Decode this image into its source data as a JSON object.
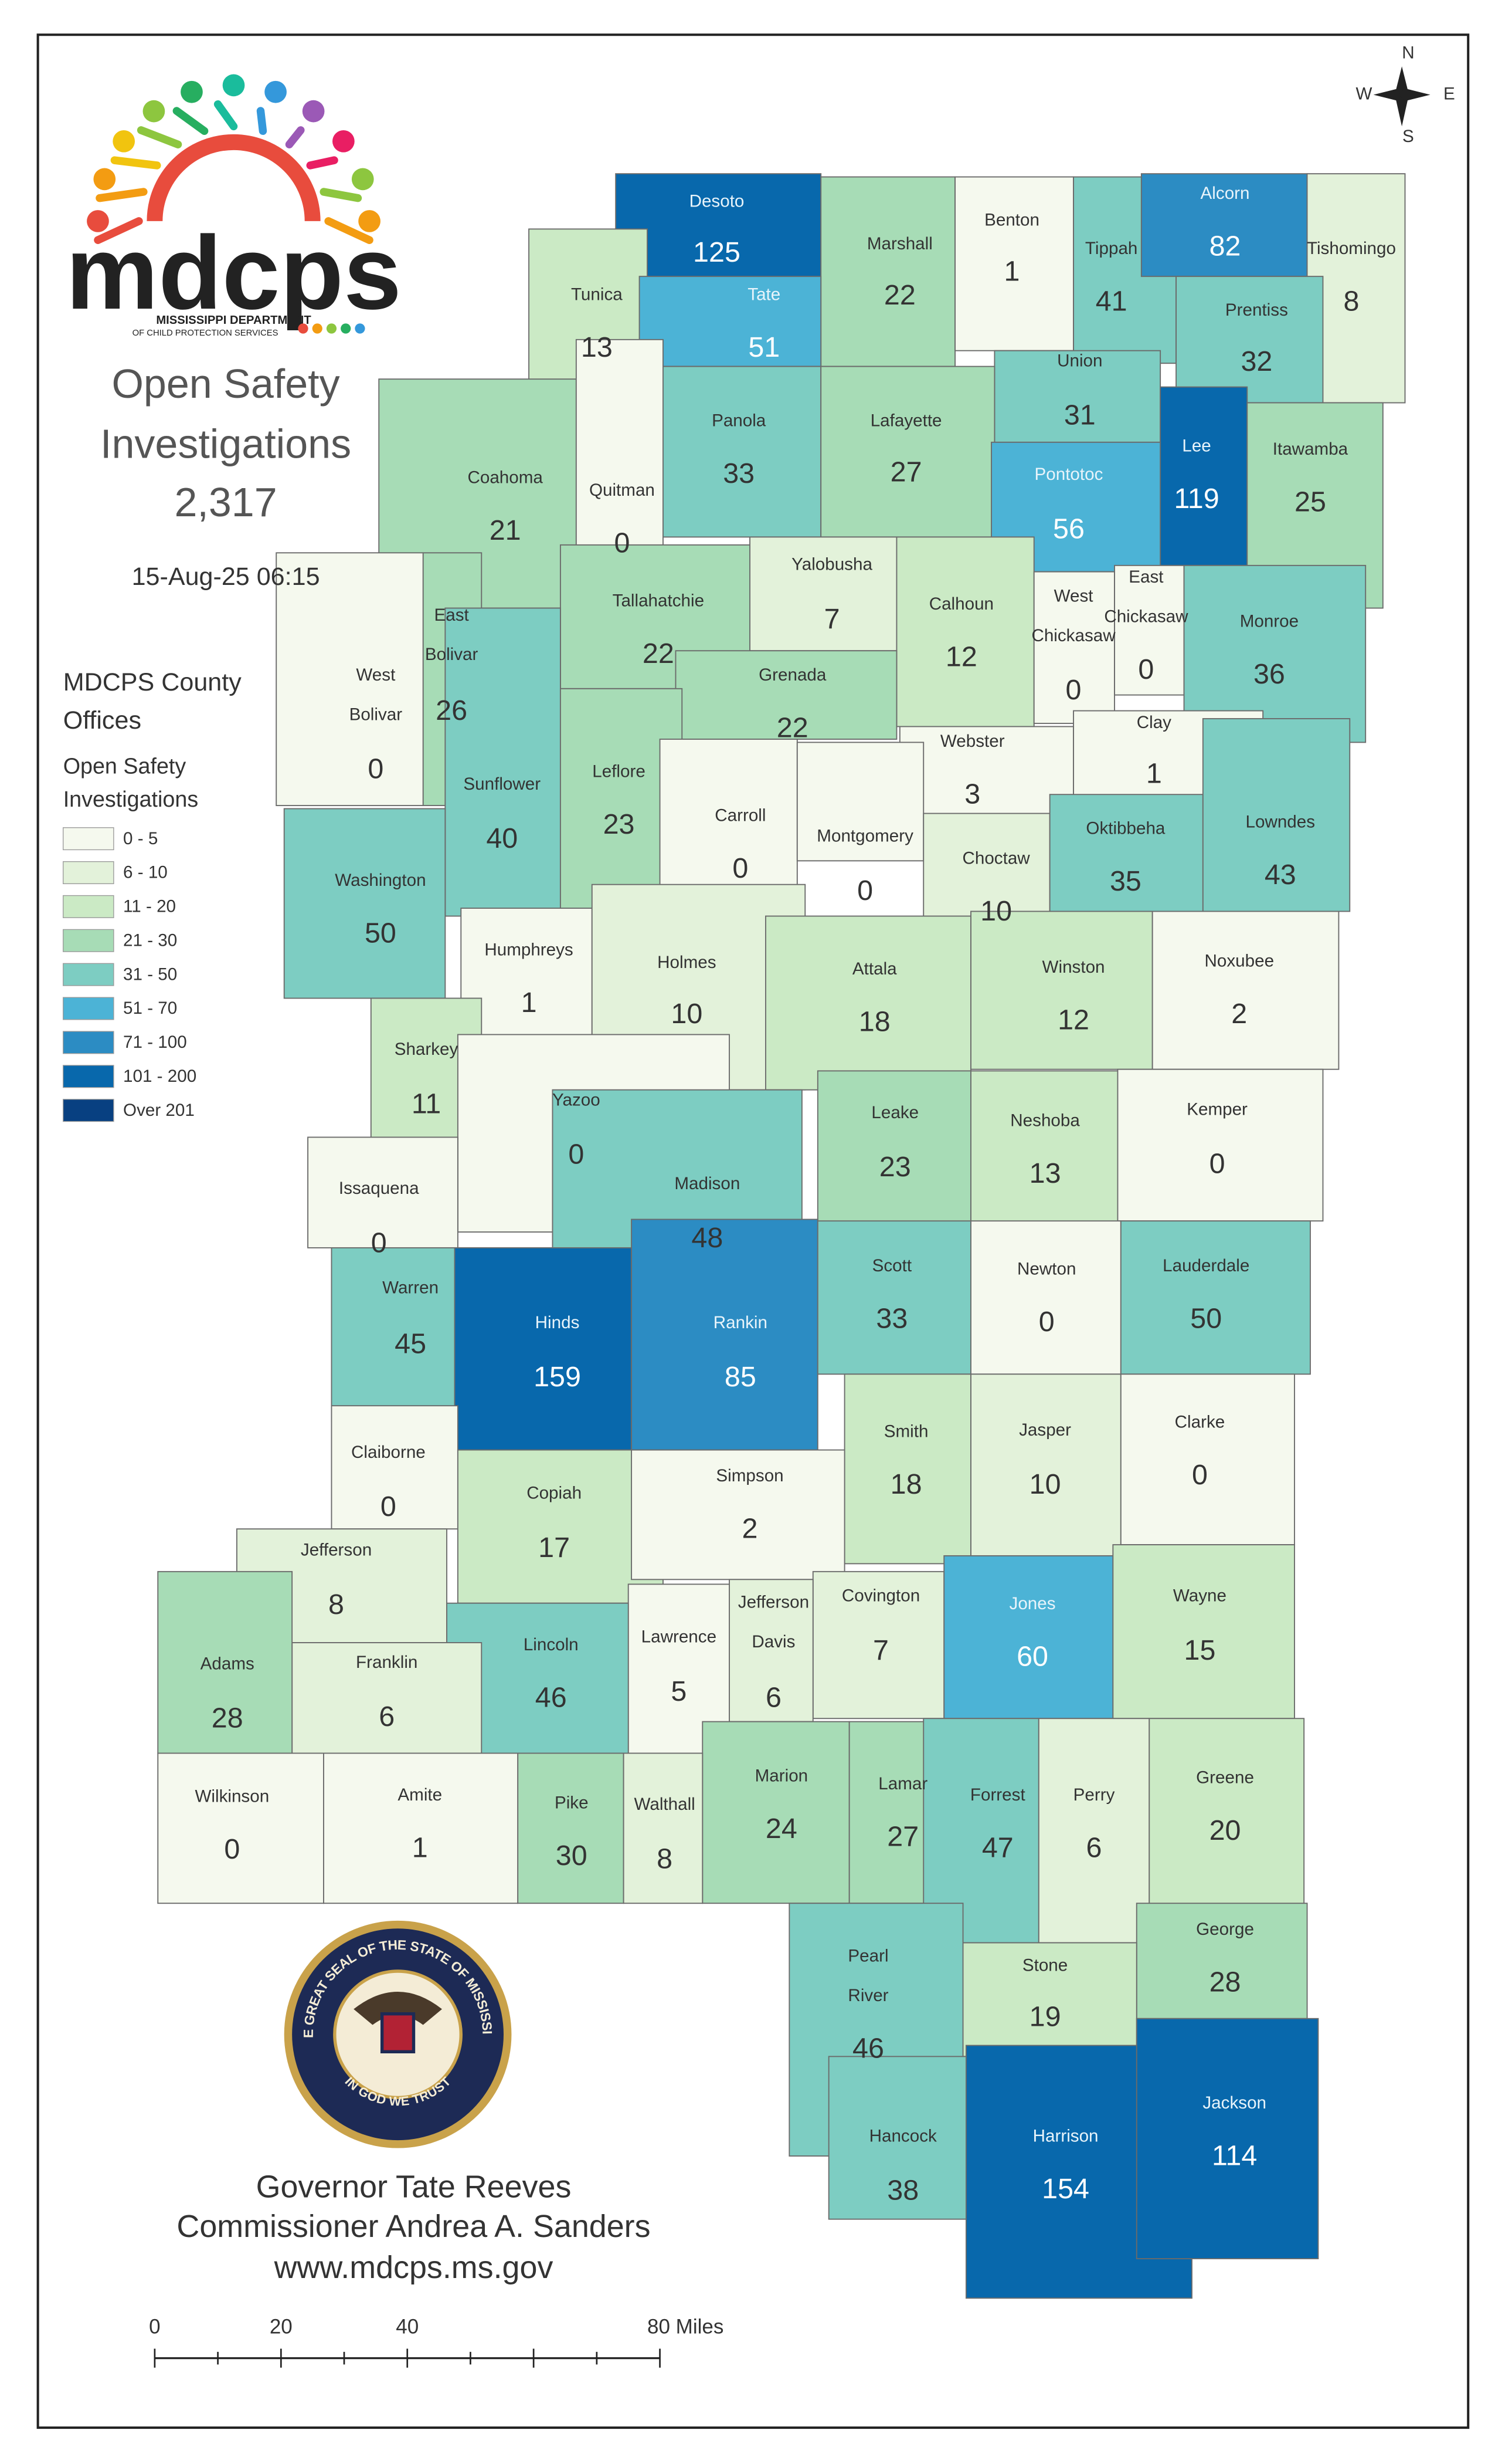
{
  "logo": {
    "name": "mdcps",
    "lines": [
      "MISSISSIPPI DEPARTMENT",
      "OF CHILD PROTECTION SERVICES"
    ]
  },
  "compass": {
    "north": "N",
    "east": "E",
    "south": "S",
    "west": "W"
  },
  "header": {
    "title": [
      "Open Safety",
      "Investigations"
    ],
    "total": "2,317",
    "timestamp": "15-Aug-25 06:15"
  },
  "legend": {
    "title": [
      "MDCPS County",
      "Offices"
    ],
    "subtitle": [
      "Open Safety",
      "Investigations"
    ],
    "bins": [
      {
        "label": "0 - 5",
        "min": 0,
        "max": 5,
        "color": "#f5f9ee"
      },
      {
        "label": "6 - 10",
        "min": 6,
        "max": 10,
        "color": "#e3f2da"
      },
      {
        "label": "11 - 20",
        "min": 11,
        "max": 20,
        "color": "#cbeac5"
      },
      {
        "label": "21 - 30",
        "min": 21,
        "max": 30,
        "color": "#a7dcb6"
      },
      {
        "label": "31 - 50",
        "min": 31,
        "max": 50,
        "color": "#7dcdc2"
      },
      {
        "label": "51 - 70",
        "min": 51,
        "max": 70,
        "color": "#4cb3d6"
      },
      {
        "label": "71 - 100",
        "min": 71,
        "max": 100,
        "color": "#2c8cc3"
      },
      {
        "label": "101 - 200",
        "min": 101,
        "max": 200,
        "color": "#0868ac"
      },
      {
        "label": "Over 201",
        "min": 201,
        "color": "#084081"
      }
    ]
  },
  "counties": [
    {
      "name": [
        "Desoto"
      ],
      "value": 125
    },
    {
      "name": [
        "Marshall"
      ],
      "value": 22
    },
    {
      "name": [
        "Benton"
      ],
      "value": 1
    },
    {
      "name": [
        "Tippah"
      ],
      "value": 41
    },
    {
      "name": [
        "Alcorn"
      ],
      "value": 82
    },
    {
      "name": [
        "Tishomingo"
      ],
      "value": 8
    },
    {
      "name": [
        "Tunica"
      ],
      "value": 13
    },
    {
      "name": [
        "Tate"
      ],
      "value": 51
    },
    {
      "name": [
        "Prentiss"
      ],
      "value": 32
    },
    {
      "name": [
        "Union"
      ],
      "value": 31
    },
    {
      "name": [
        "Panola"
      ],
      "value": 33
    },
    {
      "name": [
        "Lafayette"
      ],
      "value": 27
    },
    {
      "name": [
        "Lee"
      ],
      "value": 119
    },
    {
      "name": [
        "Itawamba"
      ],
      "value": 25
    },
    {
      "name": [
        "Coahoma"
      ],
      "value": 21
    },
    {
      "name": [
        "Quitman"
      ],
      "value": 0
    },
    {
      "name": [
        "Pontotoc"
      ],
      "value": 56
    },
    {
      "name": [
        "Yalobusha"
      ],
      "value": 7
    },
    {
      "name": [
        "Calhoun"
      ],
      "value": 12
    },
    {
      "name": [
        "West",
        "Chickasaw"
      ],
      "value": 0
    },
    {
      "name": [
        "East",
        "Chickasaw"
      ],
      "value": 0
    },
    {
      "name": [
        "Monroe"
      ],
      "value": 36
    },
    {
      "name": [
        "East",
        "Bolivar"
      ],
      "value": 26
    },
    {
      "name": [
        "Tallahatchie"
      ],
      "value": 22
    },
    {
      "name": [
        "Grenada"
      ],
      "value": 22
    },
    {
      "name": [
        "West",
        "Bolivar"
      ],
      "value": 0
    },
    {
      "name": [
        "Webster"
      ],
      "value": 3
    },
    {
      "name": [
        "Clay"
      ],
      "value": 1
    },
    {
      "name": [
        "Sunflower"
      ],
      "value": 40
    },
    {
      "name": [
        "Leflore"
      ],
      "value": 23
    },
    {
      "name": [
        "Carroll"
      ],
      "value": 0
    },
    {
      "name": [
        "Montgomery"
      ],
      "value": 0
    },
    {
      "name": [
        "Choctaw"
      ],
      "value": 10
    },
    {
      "name": [
        "Oktibbeha"
      ],
      "value": 35
    },
    {
      "name": [
        "Lowndes"
      ],
      "value": 43
    },
    {
      "name": [
        "Washington"
      ],
      "value": 50
    },
    {
      "name": [
        "Humphreys"
      ],
      "value": 1
    },
    {
      "name": [
        "Holmes"
      ],
      "value": 10
    },
    {
      "name": [
        "Attala"
      ],
      "value": 18
    },
    {
      "name": [
        "Winston"
      ],
      "value": 12
    },
    {
      "name": [
        "Noxubee"
      ],
      "value": 2
    },
    {
      "name": [
        "Sharkey"
      ],
      "value": 11
    },
    {
      "name": [
        "Yazoo"
      ],
      "value": 0
    },
    {
      "name": [
        "Leake"
      ],
      "value": 23
    },
    {
      "name": [
        "Neshoba"
      ],
      "value": 13
    },
    {
      "name": [
        "Kemper"
      ],
      "value": 0
    },
    {
      "name": [
        "Issaquena"
      ],
      "value": 0
    },
    {
      "name": [
        "Madison"
      ],
      "value": 48
    },
    {
      "name": [
        "Warren"
      ],
      "value": 45
    },
    {
      "name": [
        "Hinds"
      ],
      "value": 159
    },
    {
      "name": [
        "Rankin"
      ],
      "value": 85
    },
    {
      "name": [
        "Scott"
      ],
      "value": 33
    },
    {
      "name": [
        "Newton"
      ],
      "value": 0
    },
    {
      "name": [
        "Lauderdale"
      ],
      "value": 50
    },
    {
      "name": [
        "Smith"
      ],
      "value": 18
    },
    {
      "name": [
        "Jasper"
      ],
      "value": 10
    },
    {
      "name": [
        "Clarke"
      ],
      "value": 0
    },
    {
      "name": [
        "Claiborne"
      ],
      "value": 0
    },
    {
      "name": [
        "Copiah"
      ],
      "value": 17
    },
    {
      "name": [
        "Simpson"
      ],
      "value": 2
    },
    {
      "name": [
        "Jefferson"
      ],
      "value": 8
    },
    {
      "name": [
        "Covington"
      ],
      "value": 7
    },
    {
      "name": [
        "Jones"
      ],
      "value": 60
    },
    {
      "name": [
        "Wayne"
      ],
      "value": 15
    },
    {
      "name": [
        "Jefferson",
        "Davis"
      ],
      "value": 6
    },
    {
      "name": [
        "Lawrence"
      ],
      "value": 5
    },
    {
      "name": [
        "Lincoln"
      ],
      "value": 46
    },
    {
      "name": [
        "Franklin"
      ],
      "value": 6
    },
    {
      "name": [
        "Adams"
      ],
      "value": 28
    },
    {
      "name": [
        "Marion"
      ],
      "value": 24
    },
    {
      "name": [
        "Lamar"
      ],
      "value": 27
    },
    {
      "name": [
        "Forrest"
      ],
      "value": 47
    },
    {
      "name": [
        "Perry"
      ],
      "value": 6
    },
    {
      "name": [
        "Greene"
      ],
      "value": 20
    },
    {
      "name": [
        "Wilkinson"
      ],
      "value": 0
    },
    {
      "name": [
        "Amite"
      ],
      "value": 1
    },
    {
      "name": [
        "Pike"
      ],
      "value": 30
    },
    {
      "name": [
        "Walthall"
      ],
      "value": 8
    },
    {
      "name": [
        "George"
      ],
      "value": 28
    },
    {
      "name": [
        "Stone"
      ],
      "value": 19
    },
    {
      "name": [
        "Pearl",
        "River"
      ],
      "value": 46
    },
    {
      "name": [
        "Hancock"
      ],
      "value": 38
    },
    {
      "name": [
        "Harrison"
      ],
      "value": 154
    },
    {
      "name": [
        "Jackson"
      ],
      "value": 114
    }
  ],
  "seal": {
    "ring": "THE GREAT SEAL OF THE STATE OF MISSISSIPPI",
    "motto": "IN GOD WE TRUST"
  },
  "footer": [
    "Governor Tate Reeves",
    "Commissioner Andrea A. Sanders",
    "www.mdcps.ms.gov"
  ],
  "scale_bar": [
    "0",
    "20",
    "40",
    "80 Miles"
  ]
}
